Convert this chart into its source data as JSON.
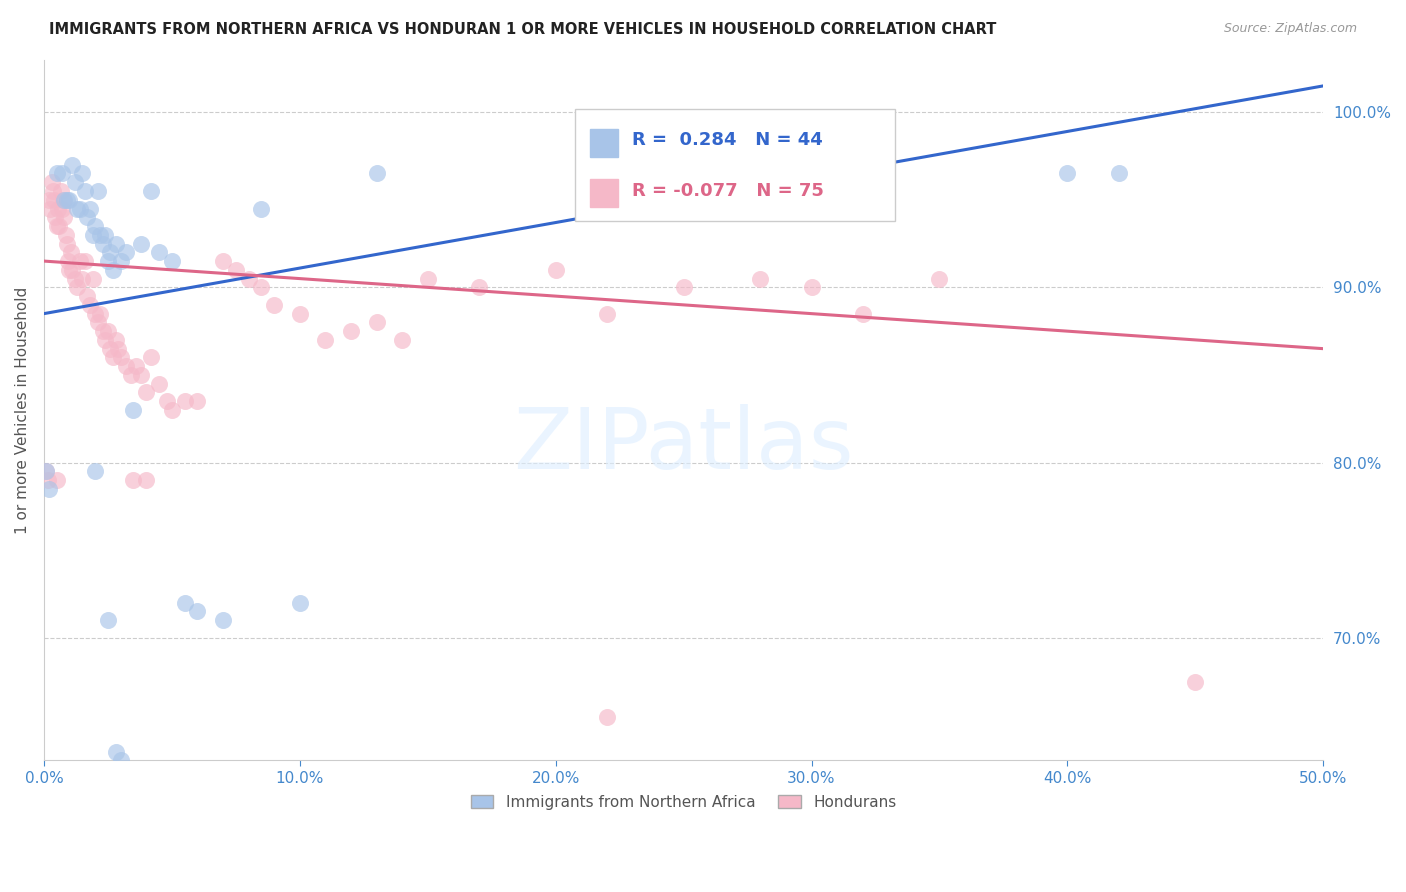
{
  "title": "IMMIGRANTS FROM NORTHERN AFRICA VS HONDURAN 1 OR MORE VEHICLES IN HOUSEHOLD CORRELATION CHART",
  "source": "Source: ZipAtlas.com",
  "ylabel": "1 or more Vehicles in Household",
  "xlim": [
    0.0,
    50.0
  ],
  "ylim": [
    63.0,
    103.0
  ],
  "xticks": [
    0.0,
    10.0,
    20.0,
    30.0,
    40.0,
    50.0
  ],
  "yticks_right": [
    70.0,
    80.0,
    90.0,
    100.0
  ],
  "yticklabels_right": [
    "70.0%",
    "80.0%",
    "90.0%",
    "100.0%"
  ],
  "blue_R": 0.284,
  "blue_N": 44,
  "pink_R": -0.077,
  "pink_N": 75,
  "blue_color": "#a8c4e8",
  "pink_color": "#f5b8c8",
  "blue_line_color": "#3366cc",
  "pink_line_color": "#dd6688",
  "blue_scatter": [
    [
      0.1,
      79.5
    ],
    [
      0.2,
      78.5
    ],
    [
      0.5,
      96.5
    ],
    [
      0.7,
      96.5
    ],
    [
      0.8,
      95.0
    ],
    [
      0.9,
      95.0
    ],
    [
      1.0,
      95.0
    ],
    [
      1.1,
      97.0
    ],
    [
      1.2,
      96.0
    ],
    [
      1.3,
      94.5
    ],
    [
      1.4,
      94.5
    ],
    [
      1.5,
      96.5
    ],
    [
      1.6,
      95.5
    ],
    [
      1.7,
      94.0
    ],
    [
      1.8,
      94.5
    ],
    [
      1.9,
      93.0
    ],
    [
      2.0,
      93.5
    ],
    [
      2.1,
      95.5
    ],
    [
      2.2,
      93.0
    ],
    [
      2.3,
      92.5
    ],
    [
      2.4,
      93.0
    ],
    [
      2.5,
      91.5
    ],
    [
      2.6,
      92.0
    ],
    [
      2.7,
      91.0
    ],
    [
      2.8,
      92.5
    ],
    [
      3.0,
      91.5
    ],
    [
      3.2,
      92.0
    ],
    [
      3.5,
      83.0
    ],
    [
      3.8,
      92.5
    ],
    [
      4.2,
      95.5
    ],
    [
      4.5,
      92.0
    ],
    [
      5.0,
      91.5
    ],
    [
      5.5,
      72.0
    ],
    [
      6.0,
      71.5
    ],
    [
      7.0,
      71.0
    ],
    [
      8.5,
      94.5
    ],
    [
      10.0,
      72.0
    ],
    [
      13.0,
      96.5
    ],
    [
      40.0,
      96.5
    ],
    [
      42.0,
      96.5
    ],
    [
      2.0,
      79.5
    ],
    [
      2.5,
      71.0
    ],
    [
      2.8,
      63.5
    ],
    [
      3.0,
      63.0
    ]
  ],
  "pink_scatter": [
    [
      0.1,
      79.5
    ],
    [
      0.15,
      79.0
    ],
    [
      0.2,
      95.0
    ],
    [
      0.25,
      94.5
    ],
    [
      0.3,
      96.0
    ],
    [
      0.35,
      95.5
    ],
    [
      0.4,
      95.0
    ],
    [
      0.45,
      94.0
    ],
    [
      0.5,
      93.5
    ],
    [
      0.55,
      94.5
    ],
    [
      0.6,
      93.5
    ],
    [
      0.65,
      95.5
    ],
    [
      0.7,
      94.5
    ],
    [
      0.75,
      95.0
    ],
    [
      0.8,
      94.0
    ],
    [
      0.85,
      93.0
    ],
    [
      0.9,
      92.5
    ],
    [
      0.95,
      91.5
    ],
    [
      1.0,
      91.0
    ],
    [
      1.05,
      92.0
    ],
    [
      1.1,
      91.0
    ],
    [
      1.2,
      90.5
    ],
    [
      1.3,
      90.0
    ],
    [
      1.4,
      91.5
    ],
    [
      1.5,
      90.5
    ],
    [
      1.6,
      91.5
    ],
    [
      1.7,
      89.5
    ],
    [
      1.8,
      89.0
    ],
    [
      1.9,
      90.5
    ],
    [
      2.0,
      88.5
    ],
    [
      2.1,
      88.0
    ],
    [
      2.2,
      88.5
    ],
    [
      2.3,
      87.5
    ],
    [
      2.4,
      87.0
    ],
    [
      2.5,
      87.5
    ],
    [
      2.6,
      86.5
    ],
    [
      2.7,
      86.0
    ],
    [
      2.8,
      87.0
    ],
    [
      2.9,
      86.5
    ],
    [
      3.0,
      86.0
    ],
    [
      3.2,
      85.5
    ],
    [
      3.4,
      85.0
    ],
    [
      3.6,
      85.5
    ],
    [
      3.8,
      85.0
    ],
    [
      4.0,
      84.0
    ],
    [
      4.2,
      86.0
    ],
    [
      4.5,
      84.5
    ],
    [
      4.8,
      83.5
    ],
    [
      5.0,
      83.0
    ],
    [
      5.5,
      83.5
    ],
    [
      6.0,
      83.5
    ],
    [
      7.0,
      91.5
    ],
    [
      7.5,
      91.0
    ],
    [
      8.0,
      90.5
    ],
    [
      8.5,
      90.0
    ],
    [
      9.0,
      89.0
    ],
    [
      10.0,
      88.5
    ],
    [
      11.0,
      87.0
    ],
    [
      12.0,
      87.5
    ],
    [
      13.0,
      88.0
    ],
    [
      14.0,
      87.0
    ],
    [
      15.0,
      90.5
    ],
    [
      17.0,
      90.0
    ],
    [
      20.0,
      91.0
    ],
    [
      22.0,
      65.5
    ],
    [
      25.0,
      90.0
    ],
    [
      28.0,
      90.5
    ],
    [
      30.0,
      90.0
    ],
    [
      32.0,
      88.5
    ],
    [
      35.0,
      90.5
    ],
    [
      45.0,
      67.5
    ],
    [
      22.0,
      88.5
    ],
    [
      3.5,
      79.0
    ],
    [
      4.0,
      79.0
    ],
    [
      0.5,
      79.0
    ]
  ],
  "background_color": "#ffffff",
  "grid_color": "#cccccc",
  "tick_color": "#4488cc",
  "legend_blue_label": "Immigrants from Northern Africa",
  "legend_pink_label": "Hondurans",
  "watermark": "ZIPatlas"
}
